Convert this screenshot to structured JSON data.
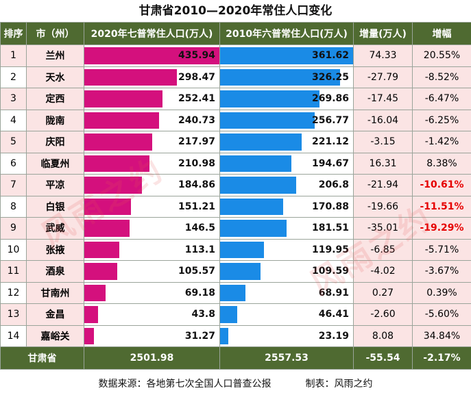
{
  "title": "甘肃省2010—2020年常住人口变化",
  "headers": [
    "排序",
    "市（州）",
    "2020年七普常住人口(万人)",
    "2010年六普常住人口(万人)",
    "增量(万人)",
    "增幅"
  ],
  "rows": [
    {
      "rank": "1",
      "city": "兰州",
      "pop2020": 435.94,
      "pop2010": 361.62,
      "increase": "74.33",
      "rate": "20.55%",
      "rate_highlight": false
    },
    {
      "rank": "2",
      "city": "天水",
      "pop2020": 298.47,
      "pop2010": 326.25,
      "increase": "-27.79",
      "rate": "-8.52%",
      "rate_highlight": false
    },
    {
      "rank": "3",
      "city": "定西",
      "pop2020": 252.41,
      "pop2010": 269.86,
      "increase": "-17.45",
      "rate": "-6.47%",
      "rate_highlight": false
    },
    {
      "rank": "4",
      "city": "陇南",
      "pop2020": 240.73,
      "pop2010": 256.77,
      "increase": "-16.04",
      "rate": "-6.25%",
      "rate_highlight": false
    },
    {
      "rank": "5",
      "city": "庆阳",
      "pop2020": 217.97,
      "pop2010": 221.12,
      "increase": "-3.15",
      "rate": "-1.42%",
      "rate_highlight": false
    },
    {
      "rank": "6",
      "city": "临夏州",
      "pop2020": 210.98,
      "pop2010": 194.67,
      "increase": "16.31",
      "rate": "8.38%",
      "rate_highlight": false
    },
    {
      "rank": "7",
      "city": "平凉",
      "pop2020": 184.86,
      "pop2010": 206.8,
      "increase": "-21.94",
      "rate": "-10.61%",
      "rate_highlight": true
    },
    {
      "rank": "8",
      "city": "白银",
      "pop2020": 151.21,
      "pop2010": 170.88,
      "increase": "-19.66",
      "rate": "-11.51%",
      "rate_highlight": true
    },
    {
      "rank": "9",
      "city": "武威",
      "pop2020": 146.5,
      "pop2010": 181.51,
      "increase": "-35.01",
      "rate": "-19.29%",
      "rate_highlight": true
    },
    {
      "rank": "10",
      "city": "张掖",
      "pop2020": 113.1,
      "pop2010": 119.95,
      "increase": "-6.85",
      "rate": "-5.71%",
      "rate_highlight": false
    },
    {
      "rank": "11",
      "city": "酒泉",
      "pop2020": 105.57,
      "pop2010": 109.59,
      "increase": "-4.02",
      "rate": "-3.67%",
      "rate_highlight": false
    },
    {
      "rank": "12",
      "city": "甘南州",
      "pop2020": 69.18,
      "pop2010": 68.91,
      "increase": "0.27",
      "rate": "0.39%",
      "rate_highlight": false
    },
    {
      "rank": "13",
      "city": "金昌",
      "pop2020": 43.8,
      "pop2010": 46.41,
      "increase": "-2.60",
      "rate": "-5.60%",
      "rate_highlight": false
    },
    {
      "rank": "14",
      "city": "嘉峪关",
      "pop2020": 31.27,
      "pop2010": 23.19,
      "increase": "8.08",
      "rate": "34.84%",
      "rate_highlight": false
    }
  ],
  "total": {
    "label": "甘肃省",
    "pop2020": "2501.98",
    "pop2010": "2557.53",
    "increase": "-55.54",
    "rate": "-2.17%"
  },
  "source": "数据来源：各地第七次全国人口普查公报",
  "credit": "制表：风雨之约",
  "watermark": "风雨之约",
  "colors": {
    "header_bg": "#4f6a31",
    "bar_2020": "#d4107d",
    "bar_2010": "#1a8be6",
    "highlight_text": "#e60000",
    "cell_pink": "#fbe4e4"
  }
}
